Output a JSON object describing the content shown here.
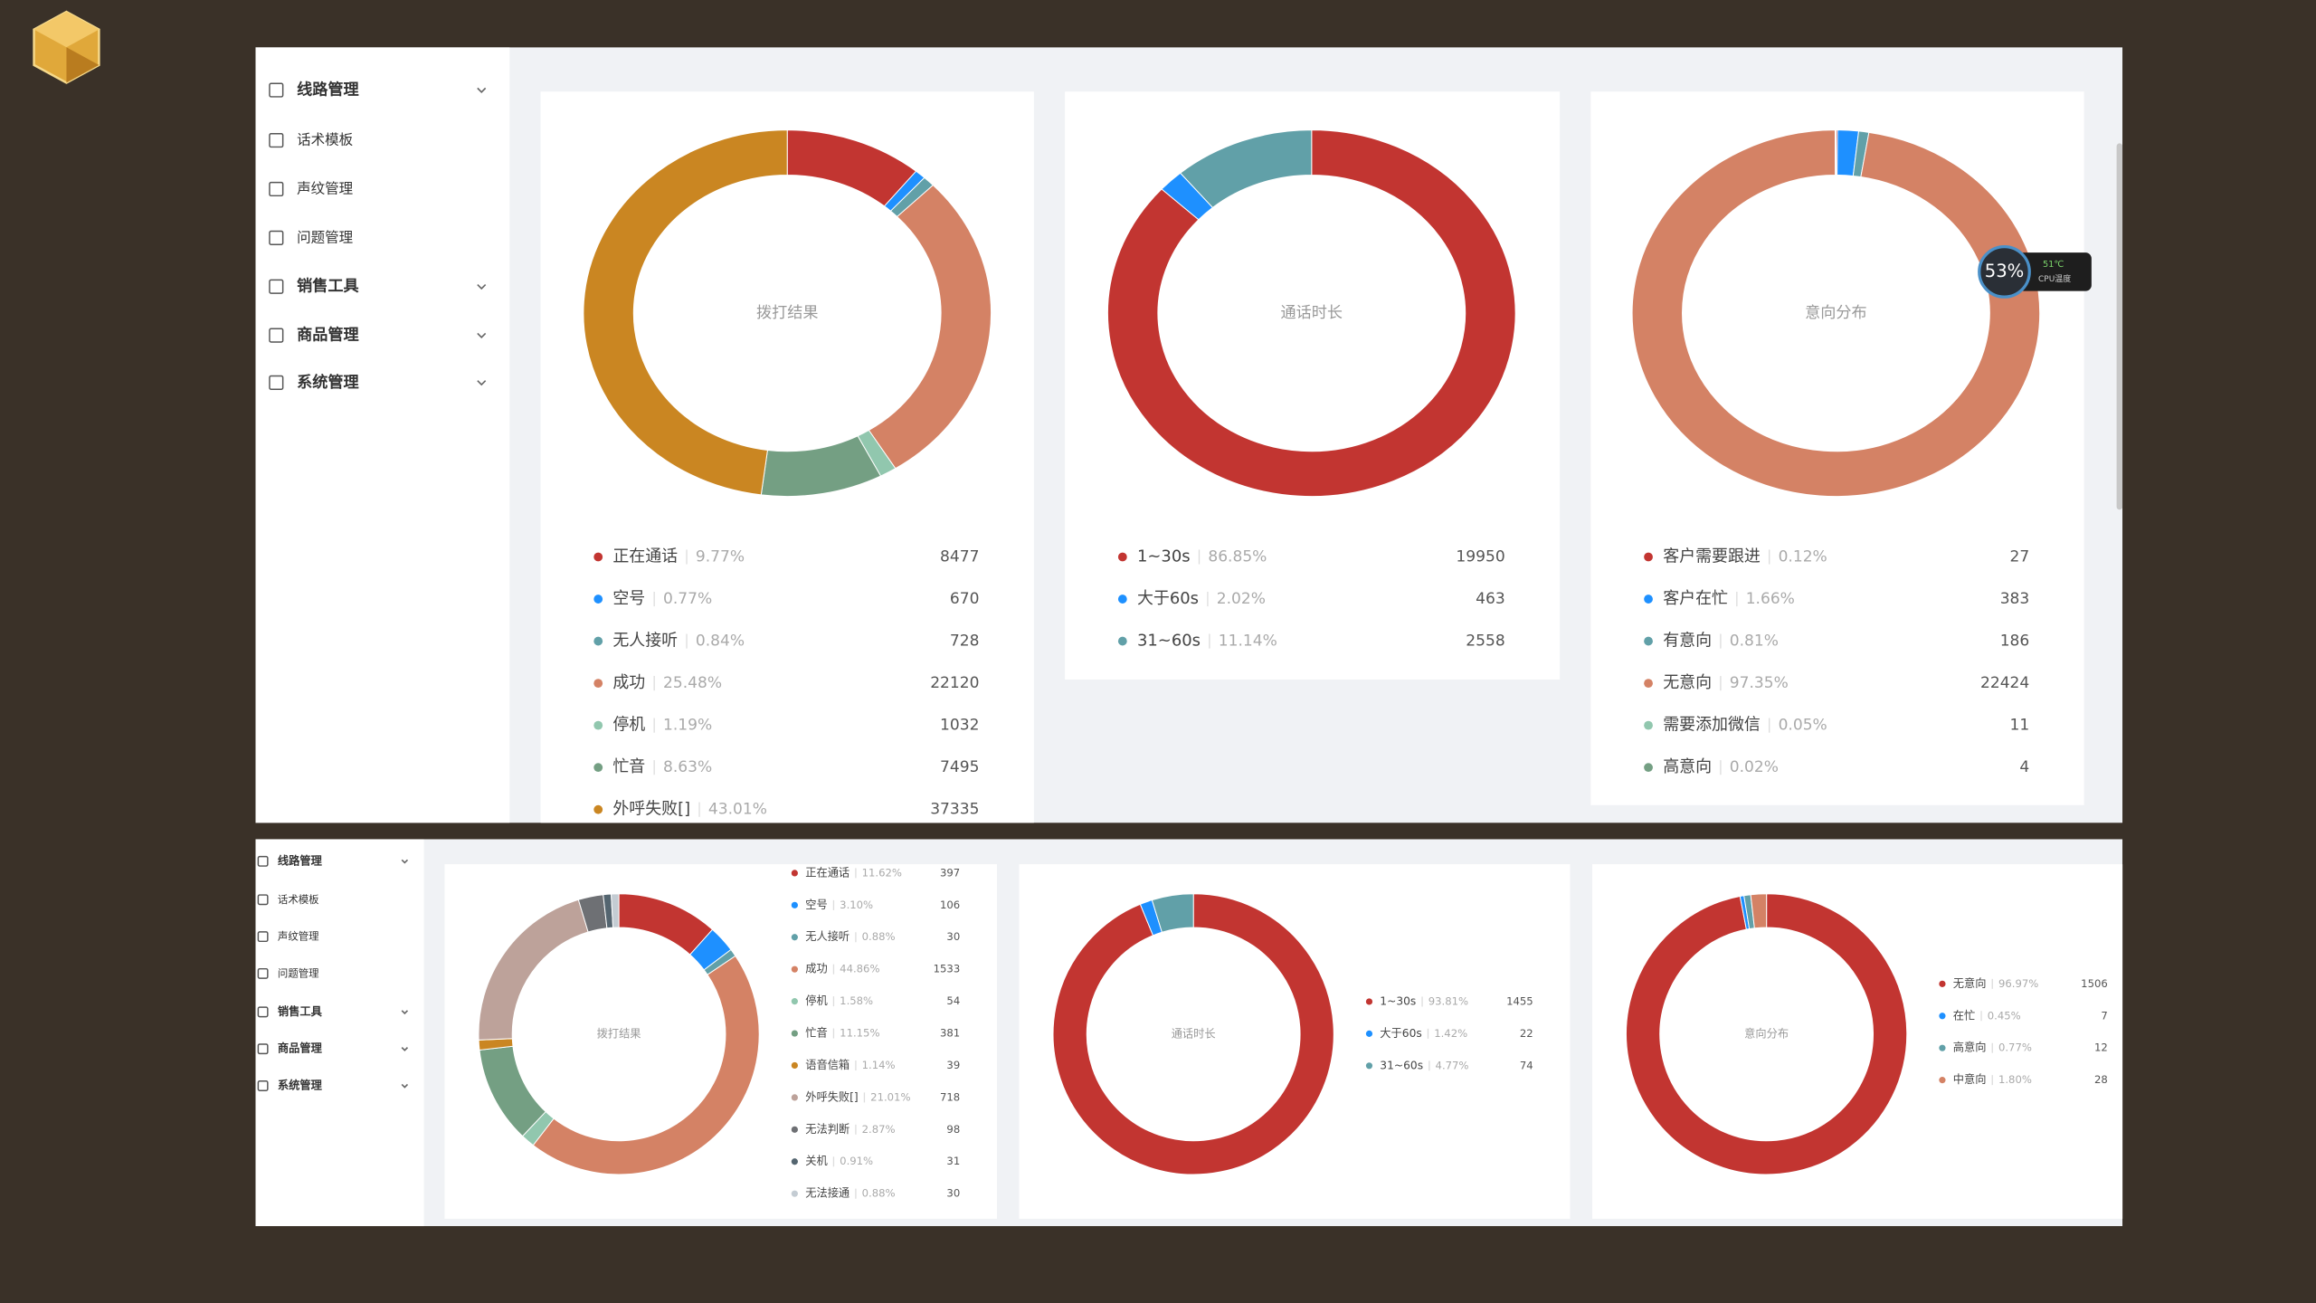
{
  "overlay": {
    "cpu_usage": "53%",
    "temperature": "51℃",
    "caption": "CPU温度"
  },
  "panels": [
    {
      "menu": [
        {
          "label": "线路管理",
          "expandable": true
        },
        {
          "label": "话术模板",
          "expandable": false
        },
        {
          "label": "声纹管理",
          "expandable": false
        },
        {
          "label": "问题管理",
          "expandable": false
        },
        {
          "label": "销售工具",
          "expandable": true
        },
        {
          "label": "商品管理",
          "expandable": true
        },
        {
          "label": "系统管理",
          "expandable": true
        }
      ]
    },
    {
      "menu": [
        {
          "label": "线路管理",
          "expandable": true
        },
        {
          "label": "话术模板",
          "expandable": false
        },
        {
          "label": "声纹管理",
          "expandable": false
        },
        {
          "label": "问题管理",
          "expandable": false
        },
        {
          "label": "销售工具",
          "expandable": true
        },
        {
          "label": "商品管理",
          "expandable": true
        },
        {
          "label": "系统管理",
          "expandable": true
        }
      ]
    }
  ],
  "chart_data": [
    {
      "type": "pie",
      "donut": true,
      "title": "拨打结果",
      "categories": [
        "正在通话",
        "空号",
        "无人接听",
        "成功",
        "停机",
        "忙音",
        "外呼失败[]"
      ],
      "percent_labels": [
        "9.77%",
        "0.77%",
        "0.84%",
        "25.48%",
        "1.19%",
        "8.63%",
        "43.01%"
      ],
      "values": [
        8477,
        670,
        728,
        22120,
        1032,
        7495,
        37335
      ],
      "colors": [
        "#c23531",
        "#1e90ff",
        "#61a0a8",
        "#d48265",
        "#91c7ae",
        "#749f83",
        "#ca8622"
      ]
    },
    {
      "type": "pie",
      "donut": true,
      "title": "通话时长",
      "categories": [
        "1~30s",
        "大于60s",
        "31~60s"
      ],
      "percent_labels": [
        "86.85%",
        "2.02%",
        "11.14%"
      ],
      "values": [
        19950,
        463,
        2558
      ],
      "colors": [
        "#c23531",
        "#1e90ff",
        "#61a0a8"
      ]
    },
    {
      "type": "pie",
      "donut": true,
      "title": "意向分布",
      "categories": [
        "客户需要跟进",
        "客户在忙",
        "有意向",
        "无意向",
        "需要添加微信",
        "高意向"
      ],
      "percent_labels": [
        "0.12%",
        "1.66%",
        "0.81%",
        "97.35%",
        "0.05%",
        "0.02%"
      ],
      "values": [
        27,
        383,
        186,
        22424,
        11,
        4
      ],
      "colors": [
        "#c23531",
        "#1e90ff",
        "#61a0a8",
        "#d48265",
        "#91c7ae",
        "#749f83"
      ]
    },
    {
      "type": "pie",
      "donut": true,
      "title": "拨打结果",
      "categories": [
        "正在通话",
        "空号",
        "无人接听",
        "成功",
        "停机",
        "忙音",
        "语音信箱",
        "外呼失败[]",
        "无法判断",
        "关机",
        "无法接通"
      ],
      "percent_labels": [
        "11.62%",
        "3.10%",
        "0.88%",
        "44.86%",
        "1.58%",
        "11.15%",
        "1.14%",
        "21.01%",
        "2.87%",
        "0.91%",
        "0.88%"
      ],
      "values": [
        397,
        106,
        30,
        1533,
        54,
        381,
        39,
        718,
        98,
        31,
        30
      ],
      "colors": [
        "#c23531",
        "#1e90ff",
        "#61a0a8",
        "#d48265",
        "#91c7ae",
        "#749f83",
        "#ca8622",
        "#bda29a",
        "#6e7074",
        "#546570",
        "#c4ccd3"
      ]
    },
    {
      "type": "pie",
      "donut": true,
      "title": "通话时长",
      "categories": [
        "1~30s",
        "大于60s",
        "31~60s"
      ],
      "percent_labels": [
        "93.81%",
        "1.42%",
        "4.77%"
      ],
      "values": [
        1455,
        22,
        74
      ],
      "colors": [
        "#c23531",
        "#1e90ff",
        "#61a0a8"
      ]
    },
    {
      "type": "pie",
      "donut": true,
      "title": "意向分布",
      "categories": [
        "无意向",
        "在忙",
        "高意向",
        "中意向"
      ],
      "percent_labels": [
        "96.97%",
        "0.45%",
        "0.77%",
        "1.80%"
      ],
      "values": [
        1506,
        7,
        12,
        28
      ],
      "colors": [
        "#c23531",
        "#1e90ff",
        "#61a0a8",
        "#d48265"
      ]
    }
  ]
}
